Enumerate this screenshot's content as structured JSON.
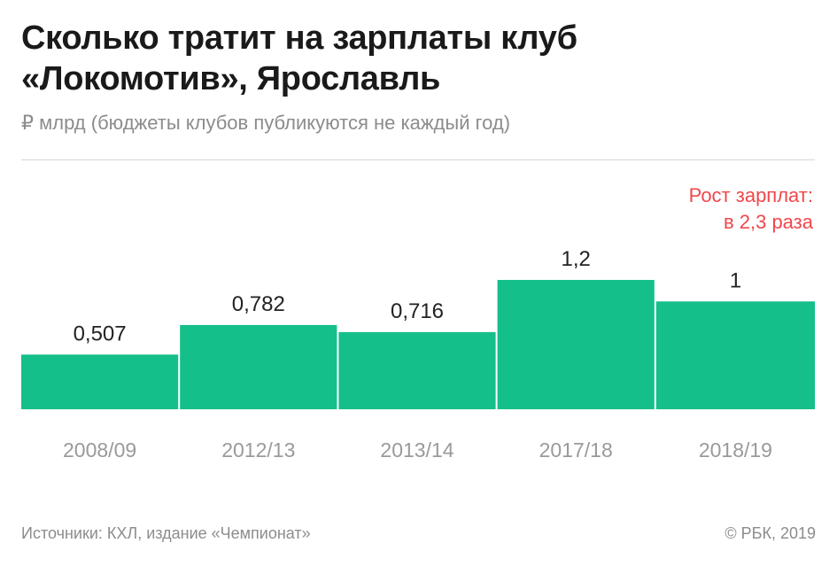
{
  "header": {
    "title_line1": "Сколько тратит на зарплаты клуб",
    "title_line2": "«Локомотив», Ярославль",
    "subtitle": "₽ млрд (бюджеты клубов публикуются не каждый год)"
  },
  "chart_data": {
    "type": "bar",
    "categories": [
      "2008/09",
      "2012/13",
      "2013/14",
      "2017/18",
      "2018/19"
    ],
    "values": [
      0.507,
      0.782,
      0.716,
      1.2,
      1
    ],
    "value_labels": [
      "0,507",
      "0,782",
      "0,716",
      "1,2",
      "1"
    ],
    "ylim": [
      0,
      1.2
    ],
    "bar_color": "#14bf8a",
    "grid": false,
    "annotation": {
      "line1": "Рост зарплат:",
      "line2": "в 2,3 раза",
      "color": "#f0474b",
      "placement": "top-right"
    }
  },
  "footer": {
    "source": "Источники: КХЛ, издание «Чемпионат»",
    "copyright": "© РБК, 2019"
  },
  "colors": {
    "title": "#1a1a1a",
    "muted": "#8c8c8c",
    "value_label": "#222222",
    "axis_label": "#9a9a9a"
  }
}
